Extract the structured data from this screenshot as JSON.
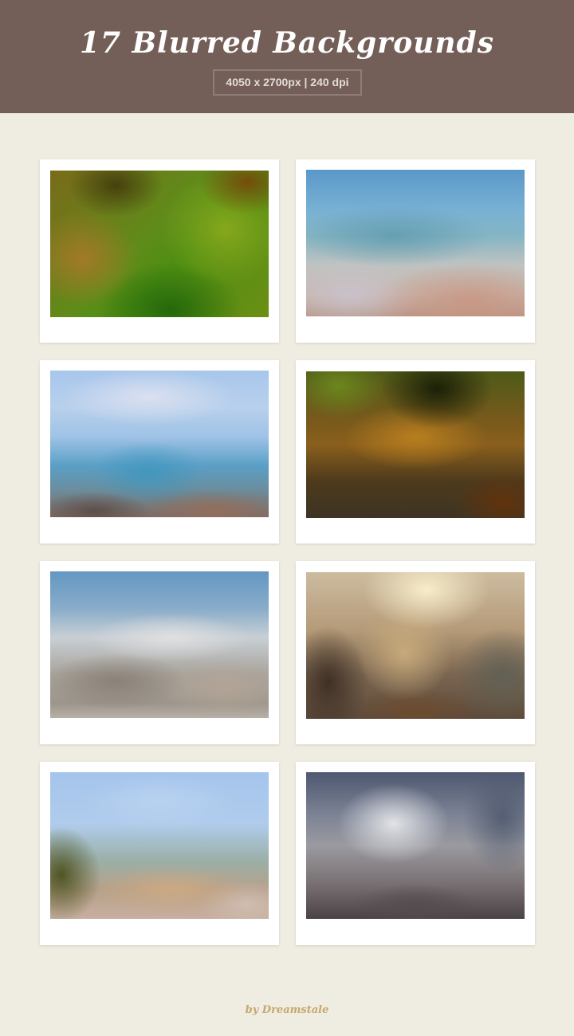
{
  "header": {
    "title": "17 Blurred Backgrounds",
    "specs": "4050 x 2700px | 240 dpi",
    "background_color": "#745f58"
  },
  "gallery": {
    "items": [
      {
        "name": "preview-1",
        "tone": "green-orange bokeh"
      },
      {
        "name": "preview-2",
        "tone": "blue sky over beige"
      },
      {
        "name": "preview-3",
        "tone": "sky and sea"
      },
      {
        "name": "preview-4",
        "tone": "dark green amber"
      },
      {
        "name": "preview-5",
        "tone": "blue sky grey hills"
      },
      {
        "name": "preview-6",
        "tone": "warm sunlight"
      },
      {
        "name": "preview-7",
        "tone": "sky and sand"
      },
      {
        "name": "preview-8",
        "tone": "grey dusk glow"
      }
    ]
  },
  "footer": {
    "credit": "by Dreamstale"
  },
  "colors": {
    "page_background": "#efece2",
    "card_background": "#ffffff",
    "credit_color": "#c7a86e"
  }
}
